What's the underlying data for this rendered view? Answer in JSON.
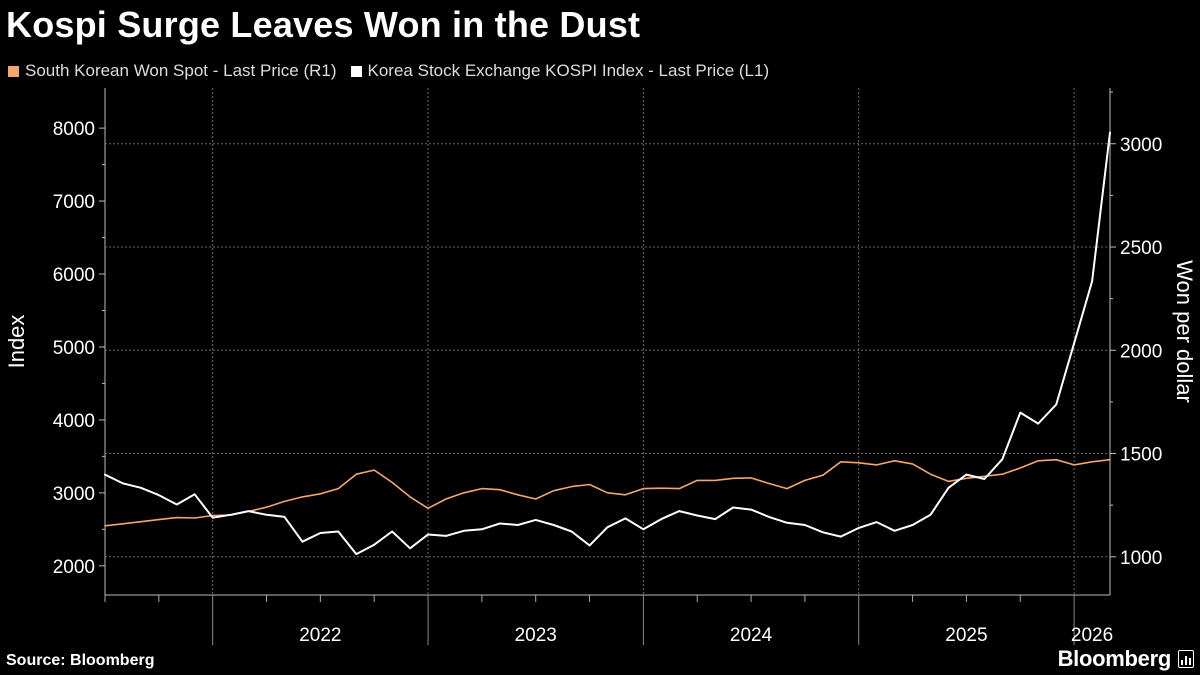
{
  "header": {
    "title": "Kospi Surge Leaves Won in the Dust"
  },
  "legend": [
    {
      "label": "South Korean Won Spot - Last Price (R1)",
      "color": "#f2a66b"
    },
    {
      "label": "Korea Stock Exchange KOSPI Index - Last Price (L1)",
      "color": "#ffffff"
    }
  ],
  "footer": {
    "source": "Source: Bloomberg",
    "brand": "Bloomberg"
  },
  "chart_data": {
    "type": "line",
    "x_axis": {
      "labels": [
        "2022",
        "2023",
        "2024",
        "2025",
        "2026"
      ],
      "range": [
        "2021-07",
        "2026-03"
      ]
    },
    "y_left": {
      "label": "Index",
      "ticks": [
        2000,
        3000,
        4000,
        5000,
        6000,
        7000,
        8000
      ],
      "range": [
        1600,
        8550
      ]
    },
    "y_right": {
      "label": "Won per dollar",
      "ticks": [
        1000,
        1500,
        2000,
        2500,
        3000
      ],
      "range": [
        815,
        3270
      ]
    },
    "grid": true,
    "legend_position": "top-left",
    "series": [
      {
        "name": "South Korean Won Spot - Last Price (R1)",
        "axis": "right",
        "color": "#f2a66b",
        "points": [
          [
            "2021-07",
            1150
          ],
          [
            "2021-08",
            1160
          ],
          [
            "2021-09",
            1170
          ],
          [
            "2021-10",
            1180
          ],
          [
            "2021-11",
            1190
          ],
          [
            "2021-12",
            1188
          ],
          [
            "2022-01",
            1200
          ],
          [
            "2022-02",
            1202
          ],
          [
            "2022-03",
            1220
          ],
          [
            "2022-04",
            1240
          ],
          [
            "2022-05",
            1268
          ],
          [
            "2022-06",
            1290
          ],
          [
            "2022-07",
            1305
          ],
          [
            "2022-08",
            1330
          ],
          [
            "2022-09",
            1400
          ],
          [
            "2022-10",
            1420
          ],
          [
            "2022-11",
            1360
          ],
          [
            "2022-12",
            1290
          ],
          [
            "2023-01",
            1235
          ],
          [
            "2023-02",
            1280
          ],
          [
            "2023-03",
            1310
          ],
          [
            "2023-04",
            1330
          ],
          [
            "2023-05",
            1325
          ],
          [
            "2023-06",
            1300
          ],
          [
            "2023-07",
            1280
          ],
          [
            "2023-08",
            1320
          ],
          [
            "2023-09",
            1340
          ],
          [
            "2023-10",
            1350
          ],
          [
            "2023-11",
            1310
          ],
          [
            "2023-12",
            1300
          ],
          [
            "2024-01",
            1330
          ],
          [
            "2024-02",
            1332
          ],
          [
            "2024-03",
            1330
          ],
          [
            "2024-04",
            1370
          ],
          [
            "2024-05",
            1370
          ],
          [
            "2024-06",
            1380
          ],
          [
            "2024-07",
            1382
          ],
          [
            "2024-08",
            1355
          ],
          [
            "2024-09",
            1330
          ],
          [
            "2024-10",
            1370
          ],
          [
            "2024-11",
            1395
          ],
          [
            "2024-12",
            1460
          ],
          [
            "2025-01",
            1455
          ],
          [
            "2025-02",
            1445
          ],
          [
            "2025-03",
            1465
          ],
          [
            "2025-04",
            1450
          ],
          [
            "2025-05",
            1400
          ],
          [
            "2025-06",
            1365
          ],
          [
            "2025-07",
            1380
          ],
          [
            "2025-08",
            1390
          ],
          [
            "2025-09",
            1400
          ],
          [
            "2025-10",
            1430
          ],
          [
            "2025-11",
            1465
          ],
          [
            "2025-12",
            1470
          ],
          [
            "2026-01",
            1445
          ],
          [
            "2026-02",
            1460
          ],
          [
            "2026-03",
            1470
          ]
        ]
      },
      {
        "name": "Korea Stock Exchange KOSPI Index - Last Price (L1)",
        "axis": "left",
        "color": "#ffffff",
        "points": [
          [
            "2021-07",
            3250
          ],
          [
            "2021-08",
            3130
          ],
          [
            "2021-09",
            3070
          ],
          [
            "2021-10",
            2970
          ],
          [
            "2021-11",
            2840
          ],
          [
            "2021-12",
            2980
          ],
          [
            "2022-01",
            2660
          ],
          [
            "2022-02",
            2700
          ],
          [
            "2022-03",
            2750
          ],
          [
            "2022-04",
            2700
          ],
          [
            "2022-05",
            2670
          ],
          [
            "2022-06",
            2330
          ],
          [
            "2022-07",
            2450
          ],
          [
            "2022-08",
            2470
          ],
          [
            "2022-09",
            2160
          ],
          [
            "2022-10",
            2290
          ],
          [
            "2022-11",
            2470
          ],
          [
            "2022-12",
            2240
          ],
          [
            "2023-01",
            2430
          ],
          [
            "2023-02",
            2410
          ],
          [
            "2023-03",
            2480
          ],
          [
            "2023-04",
            2500
          ],
          [
            "2023-05",
            2580
          ],
          [
            "2023-06",
            2560
          ],
          [
            "2023-07",
            2630
          ],
          [
            "2023-08",
            2560
          ],
          [
            "2023-09",
            2470
          ],
          [
            "2023-10",
            2280
          ],
          [
            "2023-11",
            2530
          ],
          [
            "2023-12",
            2650
          ],
          [
            "2024-01",
            2500
          ],
          [
            "2024-02",
            2640
          ],
          [
            "2024-03",
            2750
          ],
          [
            "2024-04",
            2690
          ],
          [
            "2024-05",
            2640
          ],
          [
            "2024-06",
            2800
          ],
          [
            "2024-07",
            2770
          ],
          [
            "2024-08",
            2670
          ],
          [
            "2024-09",
            2590
          ],
          [
            "2024-10",
            2560
          ],
          [
            "2024-11",
            2460
          ],
          [
            "2024-12",
            2400
          ],
          [
            "2025-01",
            2520
          ],
          [
            "2025-02",
            2600
          ],
          [
            "2025-03",
            2480
          ],
          [
            "2025-04",
            2560
          ],
          [
            "2025-05",
            2700
          ],
          [
            "2025-06",
            3070
          ],
          [
            "2025-07",
            3250
          ],
          [
            "2025-08",
            3190
          ],
          [
            "2025-09",
            3460
          ],
          [
            "2025-10",
            4100
          ],
          [
            "2025-11",
            3950
          ],
          [
            "2025-12",
            4210
          ],
          [
            "2026-01",
            5050
          ],
          [
            "2026-02",
            5900
          ],
          [
            "2026-03",
            7940
          ]
        ]
      }
    ]
  }
}
